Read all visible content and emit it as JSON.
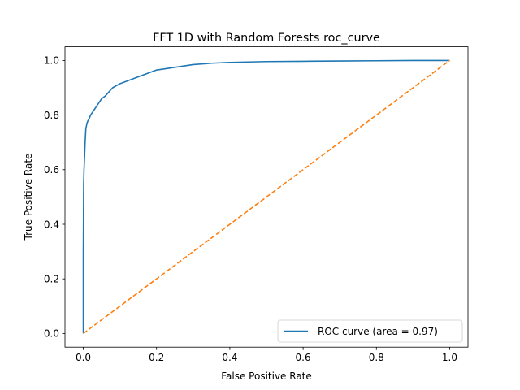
{
  "chart_data": {
    "type": "line",
    "title": "FFT 1D with Random Forests roc_curve",
    "xlabel": "False Positive Rate",
    "ylabel": "True Positive Rate",
    "xlim": [
      -0.05,
      1.05
    ],
    "ylim": [
      -0.05,
      1.05
    ],
    "xticks": [
      0.0,
      0.2,
      0.4,
      0.6,
      0.8,
      1.0
    ],
    "yticks": [
      0.0,
      0.2,
      0.4,
      0.6,
      0.8,
      1.0
    ],
    "xtick_labels": [
      "0.0",
      "0.2",
      "0.4",
      "0.6",
      "0.8",
      "1.0"
    ],
    "ytick_labels": [
      "0.0",
      "0.2",
      "0.4",
      "0.6",
      "0.8",
      "1.0"
    ],
    "grid": false,
    "legend_position": "lower-right",
    "series": [
      {
        "name": "ROC curve (area = 0.97)",
        "color": "#1f77b4",
        "style": "solid",
        "x": [
          0.0,
          0.0,
          0.001,
          0.002,
          0.003,
          0.005,
          0.007,
          0.01,
          0.013,
          0.017,
          0.02,
          0.025,
          0.03,
          0.035,
          0.04,
          0.045,
          0.05,
          0.06,
          0.07,
          0.08,
          0.1,
          0.12,
          0.15,
          0.18,
          0.2,
          0.25,
          0.3,
          0.35,
          0.4,
          0.5,
          0.6,
          0.7,
          0.8,
          0.9,
          1.0
        ],
        "y": [
          0.0,
          0.3,
          0.55,
          0.6,
          0.63,
          0.7,
          0.75,
          0.77,
          0.78,
          0.79,
          0.8,
          0.81,
          0.82,
          0.83,
          0.84,
          0.85,
          0.86,
          0.87,
          0.885,
          0.9,
          0.915,
          0.925,
          0.94,
          0.955,
          0.965,
          0.975,
          0.985,
          0.99,
          0.993,
          0.996,
          0.997,
          0.998,
          0.999,
          1.0,
          1.0
        ]
      },
      {
        "color": "#ff7f0e",
        "style": "dashed",
        "x": [
          0.0,
          1.0
        ],
        "y": [
          0.0,
          1.0
        ]
      }
    ]
  }
}
